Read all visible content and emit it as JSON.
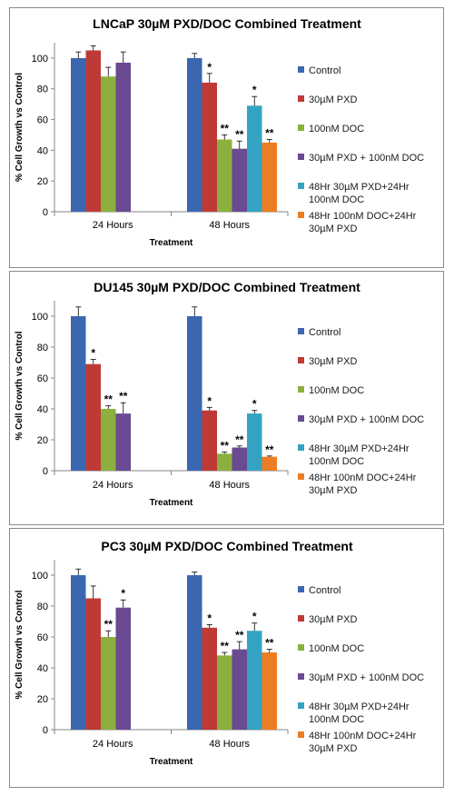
{
  "colors": {
    "Control": "#3b67b0",
    "30µM PXD": "#be3a36",
    "100nM DOC": "#8cb03e",
    "30µM PXD + 100nM DOC": "#6a4a92",
    "48Hr 30µM PXD+24Hr 100nM DOC": "#35a3c2",
    "48Hr 100nM DOC+24Hr 30µM PXD": "#ed7d23"
  },
  "legend": [
    [
      "Control"
    ],
    [
      "30µM PXD"
    ],
    [
      "100nM DOC"
    ],
    [
      "30µM PXD + 100nM DOC"
    ],
    [
      "48Hr 30µM PXD+24Hr",
      "100nM DOC"
    ],
    [
      "48Hr 100nM DOC+24Hr",
      "30µM PXD"
    ]
  ],
  "chart_data": [
    {
      "type": "bar",
      "title": "LNCaP 30µM PXD/DOC Combined Treatment",
      "xlabel": "Treatment",
      "ylabel": "% Cell Growth vs Control",
      "ylim": [
        0,
        110
      ],
      "yticks": [
        0,
        20,
        40,
        60,
        80,
        100
      ],
      "categories": [
        "24 Hours",
        "48 Hours"
      ],
      "series": [
        {
          "name": "Control",
          "values": [
            100,
            100
          ],
          "errors": [
            4,
            3
          ],
          "sig": [
            "",
            ""
          ]
        },
        {
          "name": "30µM PXD",
          "values": [
            105,
            84
          ],
          "errors": [
            3,
            6
          ],
          "sig": [
            "",
            "*"
          ]
        },
        {
          "name": "100nM DOC",
          "values": [
            88,
            47
          ],
          "errors": [
            6,
            3
          ],
          "sig": [
            "",
            "**"
          ]
        },
        {
          "name": "30µM PXD + 100nM DOC",
          "values": [
            97,
            41
          ],
          "errors": [
            7,
            5
          ],
          "sig": [
            "",
            "**"
          ]
        },
        {
          "name": "48Hr 30µM PXD+24Hr 100nM DOC",
          "values": [
            null,
            69
          ],
          "errors": [
            null,
            6
          ],
          "sig": [
            "",
            "*"
          ]
        },
        {
          "name": "48Hr 100nM DOC+24Hr 30µM PXD",
          "values": [
            null,
            45
          ],
          "errors": [
            null,
            2
          ],
          "sig": [
            "",
            "**"
          ]
        }
      ],
      "grid": false,
      "legend_position": "right"
    },
    {
      "type": "bar",
      "title": "DU145 30µM PXD/DOC Combined Treatment",
      "xlabel": "Treatment",
      "ylabel": "% Cell Growth vs Control",
      "ylim": [
        0,
        110
      ],
      "yticks": [
        0,
        20,
        40,
        60,
        80,
        100
      ],
      "categories": [
        "24 Hours",
        "48 Hours"
      ],
      "series": [
        {
          "name": "Control",
          "values": [
            100,
            100
          ],
          "errors": [
            6,
            6
          ],
          "sig": [
            "",
            ""
          ]
        },
        {
          "name": "30µM PXD",
          "values": [
            69,
            39
          ],
          "errors": [
            3,
            2
          ],
          "sig": [
            "*",
            "*"
          ]
        },
        {
          "name": "100nM DOC",
          "values": [
            40,
            11
          ],
          "errors": [
            2,
            1
          ],
          "sig": [
            "**",
            "**"
          ]
        },
        {
          "name": "30µM PXD + 100nM DOC",
          "values": [
            37,
            15
          ],
          "errors": [
            7,
            1
          ],
          "sig": [
            "**",
            "**"
          ]
        },
        {
          "name": "48Hr 30µM PXD+24Hr 100nM DOC",
          "values": [
            null,
            37
          ],
          "errors": [
            null,
            2
          ],
          "sig": [
            "",
            "*"
          ]
        },
        {
          "name": "48Hr 100nM DOC+24Hr 30µM PXD",
          "values": [
            null,
            9
          ],
          "errors": [
            null,
            0.5
          ],
          "sig": [
            "",
            "**"
          ]
        }
      ],
      "grid": false,
      "legend_position": "right"
    },
    {
      "type": "bar",
      "title": "PC3 30µM PXD/DOC Combined Treatment",
      "xlabel": "Treatment",
      "ylabel": "% Cell Growth vs Control",
      "ylim": [
        0,
        110
      ],
      "yticks": [
        0,
        20,
        40,
        60,
        80,
        100
      ],
      "categories": [
        "24 Hours",
        "48 Hours"
      ],
      "series": [
        {
          "name": "Control",
          "values": [
            100,
            100
          ],
          "errors": [
            4,
            2
          ],
          "sig": [
            "",
            ""
          ]
        },
        {
          "name": "30µM PXD",
          "values": [
            85,
            66
          ],
          "errors": [
            8,
            2
          ],
          "sig": [
            "",
            "*"
          ]
        },
        {
          "name": "100nM DOC",
          "values": [
            60,
            48
          ],
          "errors": [
            4,
            2
          ],
          "sig": [
            "**",
            "**"
          ]
        },
        {
          "name": "30µM PXD + 100nM DOC",
          "values": [
            79,
            52
          ],
          "errors": [
            5,
            5
          ],
          "sig": [
            "*",
            "**"
          ]
        },
        {
          "name": "48Hr 30µM PXD+24Hr 100nM DOC",
          "values": [
            null,
            64
          ],
          "errors": [
            null,
            5
          ],
          "sig": [
            "",
            "*"
          ]
        },
        {
          "name": "48Hr 100nM DOC+24Hr 30µM PXD",
          "values": [
            null,
            50
          ],
          "errors": [
            null,
            2
          ],
          "sig": [
            "",
            "**"
          ]
        }
      ],
      "grid": false,
      "legend_position": "right"
    }
  ]
}
